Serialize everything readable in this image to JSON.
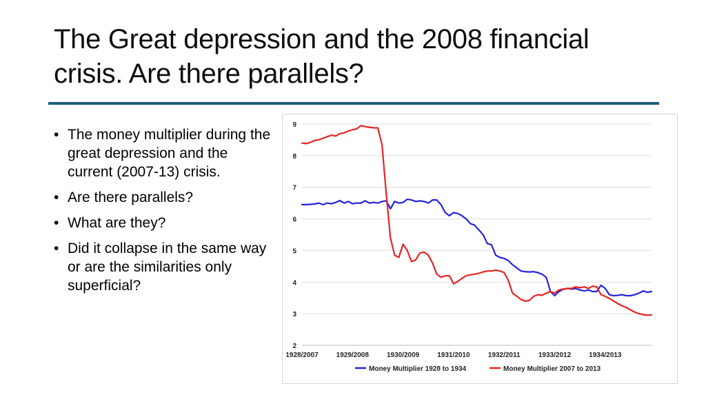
{
  "slide": {
    "title": "The Great depression and the 2008 financial crisis. Are there parallels?",
    "bullets": [
      "The money multiplier during the great depression and the current (2007-13) crisis.",
      "Are there parallels?",
      "What are they?",
      "Did it collapse in the same way or are the similarities only superficial?"
    ],
    "bullet_glyph": "•"
  },
  "colors": {
    "rule": "#1f5c7a",
    "series_1": "#2222dd",
    "series_2": "#e82222"
  },
  "chart_data": {
    "type": "line",
    "title": "",
    "xlabel": "",
    "ylabel": "",
    "ylim": [
      2,
      9
    ],
    "yticks": [
      2,
      3,
      4,
      5,
      6,
      7,
      8,
      9
    ],
    "grid": true,
    "legend_position": "bottom",
    "x_tick_labels": [
      "1928/2007",
      "1929/2008",
      "1930/2009",
      "1931/2010",
      "1932/2011",
      "1933/2012",
      "1934/2013"
    ],
    "x_tick_index": [
      0,
      12,
      24,
      36,
      48,
      60,
      72
    ],
    "x_count": 84,
    "series": [
      {
        "name": "Money Multiplier 1928 to 1934",
        "color": "#2222dd",
        "values": [
          6.45,
          6.45,
          6.46,
          6.47,
          6.5,
          6.45,
          6.5,
          6.48,
          6.52,
          6.58,
          6.5,
          6.55,
          6.48,
          6.5,
          6.5,
          6.57,
          6.5,
          6.52,
          6.5,
          6.55,
          6.57,
          6.32,
          6.55,
          6.5,
          6.52,
          6.62,
          6.6,
          6.55,
          6.57,
          6.55,
          6.5,
          6.6,
          6.6,
          6.45,
          6.2,
          6.1,
          6.2,
          6.17,
          6.1,
          6.0,
          5.85,
          5.8,
          5.65,
          5.5,
          5.22,
          5.18,
          4.85,
          4.78,
          4.75,
          4.68,
          4.55,
          4.45,
          4.35,
          4.33,
          4.32,
          4.33,
          4.3,
          4.25,
          4.15,
          3.7,
          3.57,
          3.7,
          3.77,
          3.8,
          3.78,
          3.8,
          3.75,
          3.72,
          3.75,
          3.7,
          3.7,
          3.9,
          3.8,
          3.6,
          3.57,
          3.58,
          3.6,
          3.57,
          3.57,
          3.6,
          3.65,
          3.72,
          3.68,
          3.7
        ]
      },
      {
        "name": "Money Multiplier 2007 to 2013",
        "color": "#e82222",
        "values": [
          8.4,
          8.38,
          8.42,
          8.48,
          8.5,
          8.55,
          8.6,
          8.65,
          8.62,
          8.7,
          8.72,
          8.78,
          8.82,
          8.85,
          8.95,
          8.92,
          8.9,
          8.88,
          8.88,
          8.35,
          6.8,
          5.4,
          4.85,
          4.78,
          5.2,
          5.0,
          4.65,
          4.7,
          4.92,
          4.95,
          4.85,
          4.6,
          4.25,
          4.15,
          4.2,
          4.2,
          3.95,
          4.02,
          4.12,
          4.2,
          4.23,
          4.25,
          4.28,
          4.32,
          4.35,
          4.35,
          4.38,
          4.35,
          4.3,
          4.05,
          3.65,
          3.55,
          3.45,
          3.4,
          3.42,
          3.55,
          3.6,
          3.58,
          3.65,
          3.7,
          3.65,
          3.75,
          3.78,
          3.8,
          3.8,
          3.85,
          3.82,
          3.85,
          3.8,
          3.87,
          3.85,
          3.6,
          3.55,
          3.48,
          3.4,
          3.32,
          3.25,
          3.2,
          3.12,
          3.05,
          3.0,
          2.97,
          2.95,
          2.96
        ]
      }
    ]
  }
}
